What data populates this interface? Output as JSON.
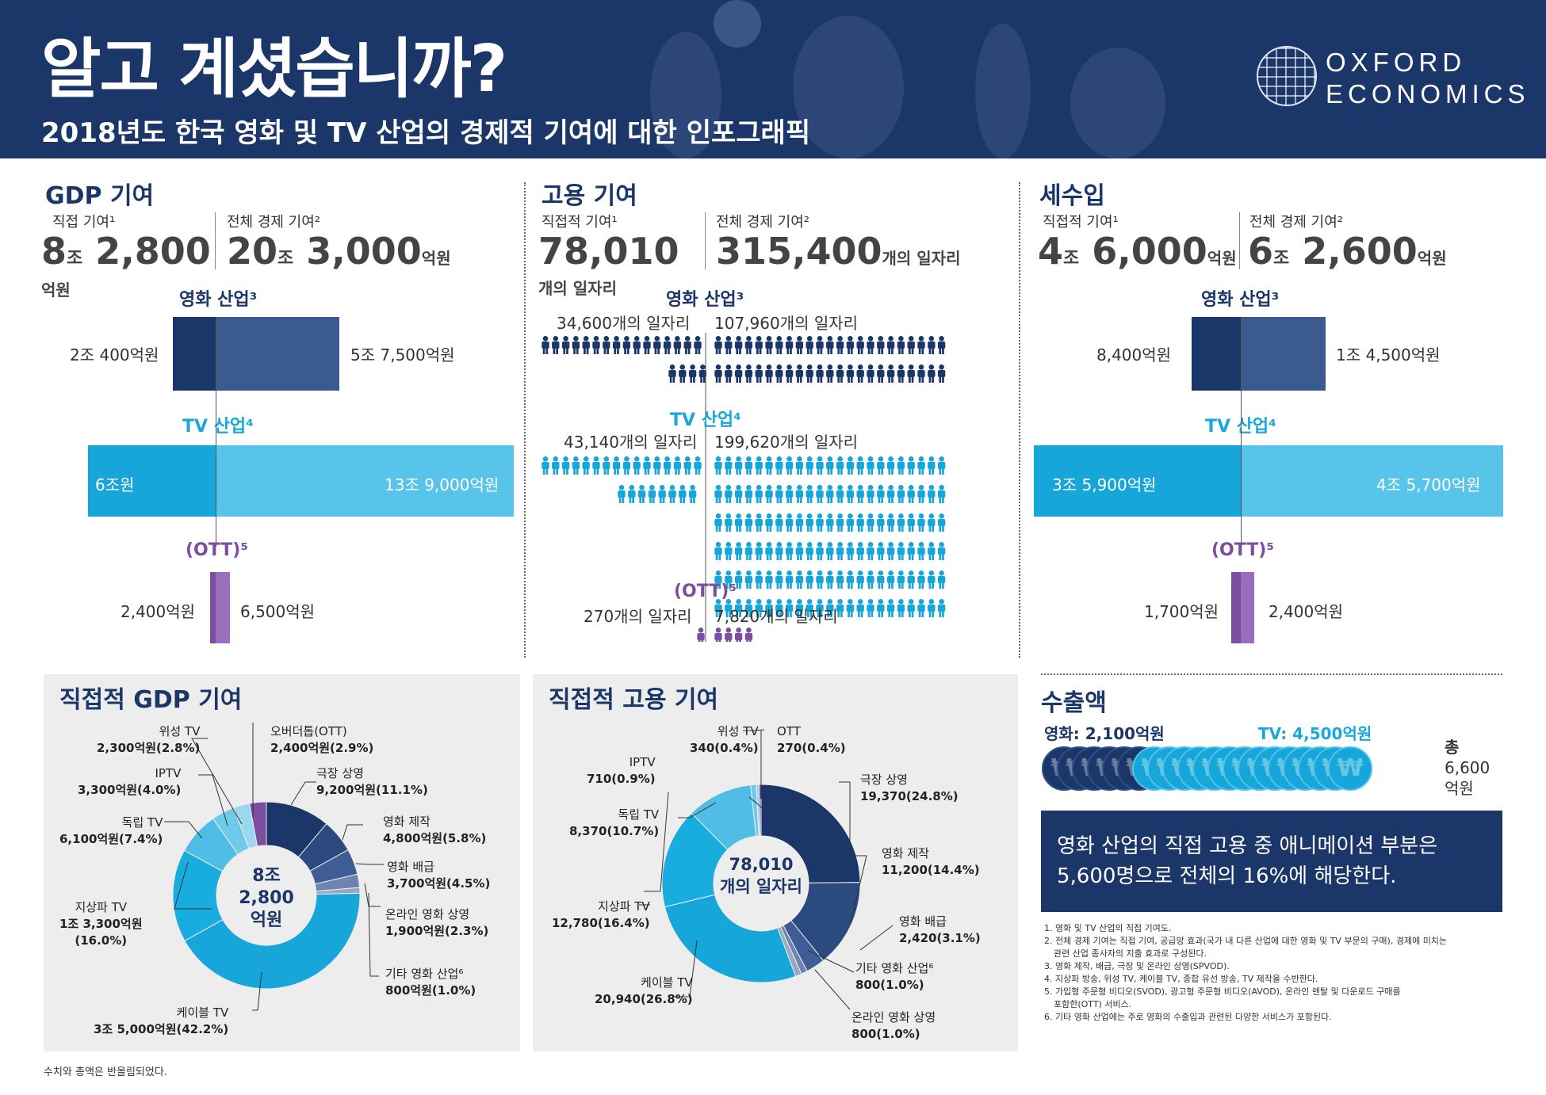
{
  "header": {
    "title": "알고 계셨습니까?",
    "subtitle": "2018년도 한국 영화 및 TV 산업의 경제적 기여에 대한 인포그래픽",
    "logo_line1": "OXFORD",
    "logo_line2": "ECONOMICS"
  },
  "gdp": {
    "title": "GDP 기여",
    "direct_label": "직접 기여¹",
    "total_label": "전체 경제 기여²",
    "direct_a": "8",
    "direct_a_unit": "조",
    "direct_b": "2,800",
    "direct_unit": "억원",
    "total_a": "20",
    "total_a_unit": "조",
    "total_b": "3,000",
    "total_unit": "억원",
    "film_title": "영화 산업³",
    "film_direct": "2조 400억원",
    "film_total": "5조 7,500억원",
    "tv_title": "TV 산업⁴",
    "tv_direct": "6조원",
    "tv_total": "13조 9,000억원",
    "ott_title": "(OTT)⁵",
    "ott_direct": "2,400억원",
    "ott_total": "6,500억원"
  },
  "emp": {
    "title": "고용 기여",
    "direct_label": "직접적 기여¹",
    "total_label": "전체 경제 기여²",
    "direct": "78,010",
    "direct_unit": "개의 일자리",
    "total": "315,400",
    "total_unit": "개의 일자리",
    "film_title": "영화 산업³",
    "film_direct": "34,600개의 일자리",
    "film_total": "107,960개의 일자리",
    "tv_title": "TV 산업⁴",
    "tv_direct": "43,140개의 일자리",
    "tv_total": "199,620개의 일자리",
    "ott_title": "(OTT)⁵",
    "ott_direct": "270개의 일자리",
    "ott_total": "7,820개의 일자리"
  },
  "tax": {
    "title": "세수입",
    "direct_label": "직접적 기여¹",
    "total_label": "전체 경제 기여²",
    "direct_a": "4",
    "direct_a_unit": "조",
    "direct_b": "6,000",
    "direct_unit": "억원",
    "total_a": "6",
    "total_a_unit": "조",
    "total_b": "2,600",
    "total_unit": "억원",
    "film_title": "영화 산업³",
    "film_direct": "8,400억원",
    "film_total": "1조 4,500억원",
    "tv_title": "TV 산업⁴",
    "tv_direct": "3조 5,900억원",
    "tv_total": "4조 5,700억원",
    "ott_title": "(OTT)⁵",
    "ott_direct": "1,700억원",
    "ott_total": "2,400억원"
  },
  "export": {
    "title": "수출액",
    "film": "영화: 2,100억원",
    "tv": "TV: 4,500억원",
    "total_label": "총",
    "total_value": "6,600",
    "total_unit": "억원",
    "coin_symbol": "₩"
  },
  "callout": {
    "line1": "영화 산업의 직접 고용 중 애니메이션 부분은",
    "line2": "5,600명으로 전체의 16%에 해당한다."
  },
  "footnotes": [
    "1. 영화 및 TV 산업의 직접 기여도.",
    "2. 전체 경제 기여는 직접 기여, 공급망 효과(국가 내 다른 산업에 대한 영화 및 TV 부문의 구매), 경제에 미치는",
    "관련 산업 종사자의 지출 효과로 구성된다.",
    "3. 영화 제작, 배급, 극장 및 온라인 상영(SPVOD).",
    "4. 지상파 방송, 위성 TV, 케이블 TV, 종합 유선 방송, TV 제작을 수반한다.",
    "5. 가입형 주문형 비디오(SVOD), 광고형 주문형 비디오(AVOD), 온라인 렌탈 및 다운로드 구매를",
    "포함한(OTT) 서비스.",
    "6. 기타 영화 산업에는 주로 영화의 수출입과 관련된 다양한 서비스가 포함된다."
  ],
  "note": "수치와 총액은 반올림되었다.",
  "chart_data": [
    {
      "type": "pie",
      "title": "직접적 GDP 기여",
      "center": [
        "8조",
        "2,800",
        "억원"
      ],
      "slices": [
        {
          "name": "극장 상영",
          "label": "9,200억원(11.1%)",
          "value": 9200,
          "pct": 11.1,
          "color": "#1b3668"
        },
        {
          "name": "영화 제작",
          "label": "4,800억원(5.8%)",
          "value": 4800,
          "pct": 5.8,
          "color": "#2a4a80"
        },
        {
          "name": "영화 배급",
          "label": "3,700억원(4.5%)",
          "value": 3700,
          "pct": 4.5,
          "color": "#3f5d94"
        },
        {
          "name": "온라인 영화 상영",
          "label": "1,900억원(2.3%)",
          "value": 1900,
          "pct": 2.3,
          "color": "#6d83b0"
        },
        {
          "name": "기타 영화 산업⁶",
          "label": "800억원(1.0%)",
          "value": 800,
          "pct": 1.0,
          "color": "#9aa8c8"
        },
        {
          "name": "케이블 TV",
          "label": "3조 5,000억원(42.2%)",
          "value": 35000,
          "pct": 42.2,
          "color": "#16a6d9"
        },
        {
          "name": "지상파 TV",
          "label": "1조 3,300억원",
          "label2": "(16.0%)",
          "value": 13300,
          "pct": 16.0,
          "color": "#19addf"
        },
        {
          "name": "독립 TV",
          "label": "6,100억원(7.4%)",
          "value": 6100,
          "pct": 7.4,
          "color": "#4fbde5"
        },
        {
          "name": "IPTV",
          "label": "3,300억원(4.0%)",
          "value": 3300,
          "pct": 4.0,
          "color": "#6fcaea"
        },
        {
          "name": "위성 TV",
          "label": "2,300억원(2.8%)",
          "value": 2300,
          "pct": 2.8,
          "color": "#9ad8f0"
        },
        {
          "name": "오버더톱(OTT)",
          "label": "2,400억원(2.9%)",
          "value": 2400,
          "pct": 2.9,
          "color": "#7b4ea0"
        }
      ]
    },
    {
      "type": "pie",
      "title": "직접적 고용 기여",
      "center": [
        "78,010",
        "개의 일자리"
      ],
      "slices": [
        {
          "name": "극장 상영",
          "label": "19,370(24.8%)",
          "value": 19370,
          "pct": 24.8,
          "color": "#1b3668"
        },
        {
          "name": "영화 제작",
          "label": "11,200(14.4%)",
          "value": 11200,
          "pct": 14.4,
          "color": "#2a4a80"
        },
        {
          "name": "영화 배급",
          "label": "2,420(3.1%)",
          "value": 2420,
          "pct": 3.1,
          "color": "#3f5d94"
        },
        {
          "name": "기타 영화 산업⁶",
          "label": "800(1.0%)",
          "value": 800,
          "pct": 1.0,
          "color": "#6d83b0"
        },
        {
          "name": "온라인 영화 상영",
          "label": "800(1.0%)",
          "value": 800,
          "pct": 1.0,
          "color": "#9aa8c8"
        },
        {
          "name": "케이블 TV",
          "label": "20,940(26.8%)",
          "value": 20940,
          "pct": 26.8,
          "color": "#16a6d9"
        },
        {
          "name": "지상파 TV",
          "label": "12,780(16.4%)",
          "value": 12780,
          "pct": 16.4,
          "color": "#19addf"
        },
        {
          "name": "독립 TV",
          "label": "8,370(10.7%)",
          "value": 8370,
          "pct": 10.7,
          "color": "#4fbde5"
        },
        {
          "name": "IPTV",
          "label": "710(0.9%)",
          "value": 710,
          "pct": 0.9,
          "color": "#6fcaea"
        },
        {
          "name": "위성 TV",
          "label": "340(0.4%)",
          "value": 340,
          "pct": 0.4,
          "color": "#9ad8f0"
        },
        {
          "name": "OTT",
          "label": "270(0.4%)",
          "value": 270,
          "pct": 0.4,
          "color": "#7b4ea0"
        }
      ]
    },
    {
      "type": "bar",
      "title": "GDP 기여 (억원)",
      "categories": [
        "영화 산업³",
        "TV 산업⁴",
        "(OTT)⁵"
      ],
      "series": [
        {
          "name": "직접 기여",
          "values": [
            20400,
            60000,
            2400
          ]
        },
        {
          "name": "전체 경제 기여",
          "values": [
            57500,
            139000,
            6500
          ]
        }
      ]
    },
    {
      "type": "bar",
      "title": "세수입 (억원)",
      "categories": [
        "영화 산업³",
        "TV 산업⁴",
        "(OTT)⁵"
      ],
      "series": [
        {
          "name": "직접 기여",
          "values": [
            8400,
            35900,
            1700
          ]
        },
        {
          "name": "전체 경제 기여",
          "values": [
            14500,
            45700,
            2400
          ]
        }
      ]
    },
    {
      "type": "bar",
      "title": "고용 기여 (일자리)",
      "categories": [
        "영화 산업³",
        "TV 산업⁴",
        "(OTT)⁵"
      ],
      "series": [
        {
          "name": "직접 기여",
          "values": [
            34600,
            43140,
            270
          ]
        },
        {
          "name": "전체 경제 기여",
          "values": [
            107960,
            199620,
            7820
          ]
        }
      ]
    },
    {
      "type": "bar",
      "title": "수출액 (억원)",
      "categories": [
        "영화",
        "TV"
      ],
      "values": [
        2100,
        4500
      ]
    }
  ]
}
